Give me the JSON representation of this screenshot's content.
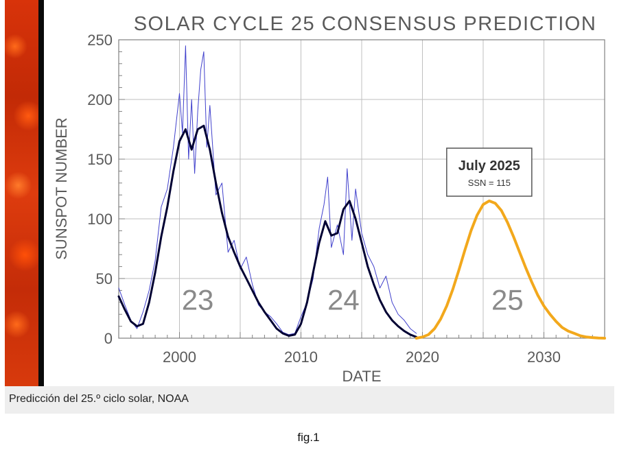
{
  "chart_data": {
    "type": "line",
    "title": "SOLAR CYCLE 25 CONSENSUS PREDICTION",
    "xlabel": "DATE",
    "ylabel": "SUNSPOT NUMBER",
    "xlim": [
      1995,
      2035
    ],
    "ylim": [
      0,
      250
    ],
    "x_ticks": [
      2000,
      2010,
      2020,
      2030
    ],
    "y_ticks": [
      0,
      50,
      100,
      150,
      200,
      250
    ],
    "grid": true,
    "series": [
      {
        "kind": "monthly-observed",
        "color": "#4040cc",
        "x": [
          1995.0,
          1995.5,
          1996.0,
          1996.5,
          1997.0,
          1997.5,
          1998.0,
          1998.5,
          1999.0,
          1999.5,
          2000.0,
          2000.25,
          2000.5,
          2000.75,
          2001.0,
          2001.25,
          2001.5,
          2001.75,
          2002.0,
          2002.25,
          2002.5,
          2003.0,
          2003.5,
          2004.0,
          2004.5,
          2005.0,
          2005.5,
          2006.0,
          2006.5,
          2007.0,
          2007.5,
          2008.0,
          2008.5,
          2009.0,
          2009.5,
          2010.0,
          2010.5,
          2011.0,
          2011.5,
          2011.9,
          2012.2,
          2012.5,
          2013.0,
          2013.5,
          2013.8,
          2014.2,
          2014.5,
          2015.0,
          2015.5,
          2016.0,
          2016.5,
          2017.0,
          2017.5,
          2018.0,
          2018.5,
          2019.0,
          2019.5
        ],
        "y": [
          42,
          28,
          15,
          8,
          22,
          40,
          65,
          110,
          125,
          160,
          205,
          172,
          245,
          150,
          200,
          138,
          190,
          225,
          240,
          160,
          195,
          120,
          130,
          72,
          82,
          58,
          68,
          45,
          28,
          22,
          18,
          12,
          5,
          3,
          4,
          18,
          30,
          50,
          92,
          112,
          135,
          76,
          95,
          70,
          142,
          82,
          125,
          88,
          70,
          60,
          42,
          52,
          30,
          20,
          15,
          8,
          4
        ]
      },
      {
        "kind": "smoothed",
        "color": "#000033",
        "x": [
          1995.0,
          1995.5,
          1996.0,
          1996.5,
          1997.0,
          1997.5,
          1998.0,
          1998.5,
          1999.0,
          1999.5,
          2000.0,
          2000.5,
          2001.0,
          2001.5,
          2002.0,
          2002.5,
          2003.0,
          2003.5,
          2004.0,
          2004.5,
          2005.0,
          2005.5,
          2006.0,
          2006.5,
          2007.0,
          2007.5,
          2008.0,
          2008.5,
          2009.0,
          2009.5,
          2010.0,
          2010.5,
          2011.0,
          2011.5,
          2012.0,
          2012.5,
          2013.0,
          2013.5,
          2014.0,
          2014.5,
          2015.0,
          2015.5,
          2016.0,
          2016.5,
          2017.0,
          2017.5,
          2018.0,
          2018.5,
          2019.0,
          2019.5
        ],
        "y": [
          35,
          24,
          14,
          10,
          12,
          30,
          55,
          85,
          110,
          140,
          165,
          175,
          158,
          175,
          178,
          158,
          130,
          105,
          85,
          72,
          60,
          50,
          40,
          30,
          22,
          15,
          8,
          4,
          2,
          3,
          12,
          30,
          55,
          80,
          98,
          86,
          88,
          108,
          115,
          100,
          80,
          60,
          45,
          32,
          22,
          15,
          10,
          6,
          3,
          1
        ]
      },
      {
        "kind": "predicted",
        "color": "#f2a81c",
        "x": [
          2019.5,
          2020.0,
          2020.5,
          2021.0,
          2021.5,
          2022.0,
          2022.5,
          2023.0,
          2023.5,
          2024.0,
          2024.5,
          2025.0,
          2025.5,
          2026.0,
          2026.5,
          2027.0,
          2027.5,
          2028.0,
          2028.5,
          2029.0,
          2029.5,
          2030.0,
          2030.5,
          2031.0,
          2031.5,
          2032.0,
          2032.5,
          2033.0,
          2033.5,
          2034.0,
          2034.5,
          2035.0
        ],
        "y": [
          0,
          1,
          3,
          8,
          16,
          27,
          41,
          57,
          74,
          90,
          103,
          112,
          115,
          113,
          107,
          97,
          85,
          72,
          59,
          47,
          36,
          27,
          20,
          14,
          9,
          6,
          4,
          2,
          1,
          0.5,
          0.2,
          0
        ]
      }
    ],
    "cycle_labels": [
      {
        "text": "23",
        "x": 2001.5,
        "y": 25
      },
      {
        "text": "24",
        "x": 2013.5,
        "y": 25
      },
      {
        "text": "25",
        "x": 2027.0,
        "y": 25
      }
    ],
    "annotation": {
      "title": "July 2025",
      "subtitle": "SSN = 115",
      "x": 2025.5,
      "y": 115
    }
  },
  "caption": "Predicción del 25.º ciclo solar, NOAA",
  "figure_label": "fig.1",
  "colors": {
    "sun_strip": "#d8330a",
    "observed": "#4040cc",
    "smoothed": "#000033",
    "predicted": "#f2a81c",
    "grid": "#bfbfbf",
    "axis_text": "#5a5a5a"
  }
}
